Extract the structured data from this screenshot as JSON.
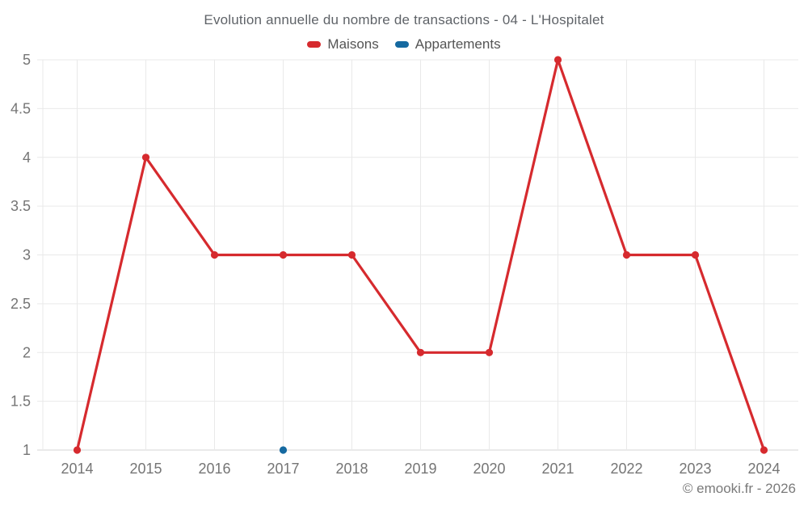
{
  "header": {
    "title": "Evolution annuelle du nombre de transactions - 04 - L'Hospitalet"
  },
  "legend": {
    "items": [
      {
        "label": "Maisons",
        "color": "#d62a2e"
      },
      {
        "label": "Appartements",
        "color": "#1569a0"
      }
    ]
  },
  "footer": {
    "credit": "© emooki.fr - 2026"
  },
  "chart_data": {
    "type": "line",
    "title": "Evolution annuelle du nombre de transactions - 04 - L'Hospitalet",
    "categories": [
      "2014",
      "2015",
      "2016",
      "2017",
      "2018",
      "2019",
      "2020",
      "2021",
      "2022",
      "2023",
      "2024"
    ],
    "series": [
      {
        "name": "Maisons",
        "color": "#d62a2e",
        "values": [
          1,
          4,
          3,
          3,
          3,
          2,
          2,
          5,
          3,
          3,
          1
        ]
      },
      {
        "name": "Appartements",
        "color": "#1569a0",
        "values": [
          null,
          null,
          null,
          1,
          null,
          null,
          null,
          null,
          null,
          null,
          null
        ]
      }
    ],
    "xlabel": "",
    "ylabel": "",
    "ylim": [
      1,
      5
    ],
    "ytick_step": 0.5,
    "ytick_labels": [
      "1",
      "1.5",
      "2",
      "2.5",
      "3",
      "3.5",
      "4",
      "4.5",
      "5"
    ],
    "grid": true,
    "legend_position": "top",
    "colors": {
      "gridline": "#e9e9e9",
      "axis_line": "#d6d6d6",
      "tick_label": "#757575"
    }
  }
}
